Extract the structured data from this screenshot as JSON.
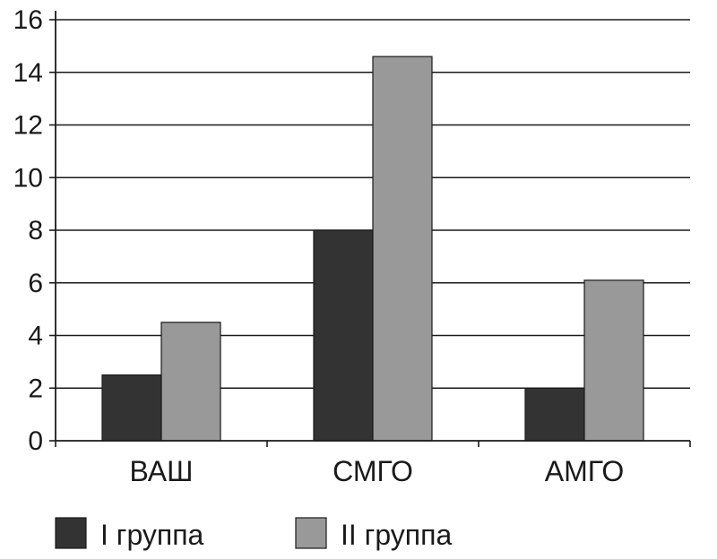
{
  "chart_data": {
    "type": "bar",
    "title": "",
    "xlabel": "",
    "ylabel": "",
    "categories": [
      "ВАШ",
      "СМГО",
      "АМГО"
    ],
    "series": [
      {
        "name": "I группа",
        "values": [
          2.5,
          8,
          2
        ],
        "color": "#333333"
      },
      {
        "name": "II группа",
        "values": [
          4.5,
          14.6,
          6.1
        ],
        "color": "#999999"
      }
    ],
    "ylim": [
      0,
      16
    ],
    "yticks": [
      "0",
      "2",
      "4",
      "6",
      "8",
      "10",
      "12",
      "14",
      "16"
    ],
    "grid": true,
    "legend_position": "bottom-left"
  }
}
